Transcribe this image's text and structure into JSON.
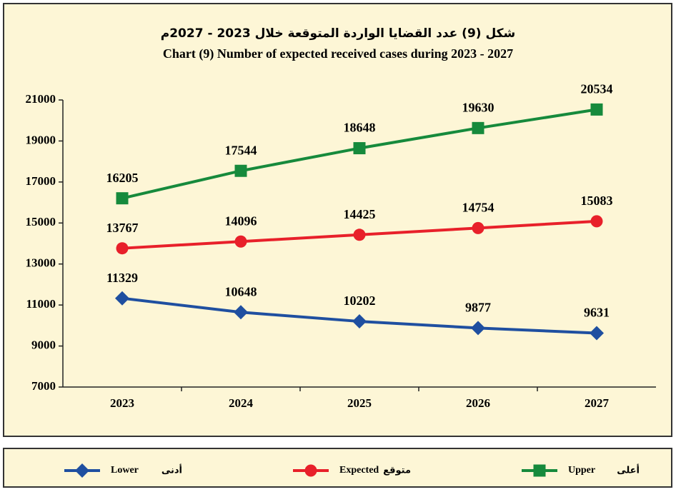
{
  "chart_data": {
    "type": "line",
    "title": "شكل (9) عدد القضايا الواردة المتوقعة خلال 2023 - 2027م",
    "subtitle": "Chart (9) Number of expected received cases during 2023 - 2027",
    "categories": [
      "2023",
      "2024",
      "2025",
      "2026",
      "2027"
    ],
    "series": [
      {
        "name": "Lower",
        "name_ar": "أدنى",
        "color": "#1f4fa0",
        "marker": "diamond",
        "values": [
          11329,
          10648,
          10202,
          9877,
          9631
        ]
      },
      {
        "name": "Expected",
        "name_ar": "متوقع",
        "color": "#e8202a",
        "marker": "circle",
        "values": [
          13767,
          14096,
          14425,
          14754,
          15083
        ]
      },
      {
        "name": "Upper",
        "name_ar": "أعلى",
        "color": "#168a3c",
        "marker": "square",
        "values": [
          16205,
          17544,
          18648,
          19630,
          20534
        ]
      }
    ],
    "ylim": [
      7000,
      21000
    ],
    "yticks": [
      7000,
      9000,
      11000,
      13000,
      15000,
      17000,
      19000,
      21000
    ],
    "legend": "bottom"
  }
}
